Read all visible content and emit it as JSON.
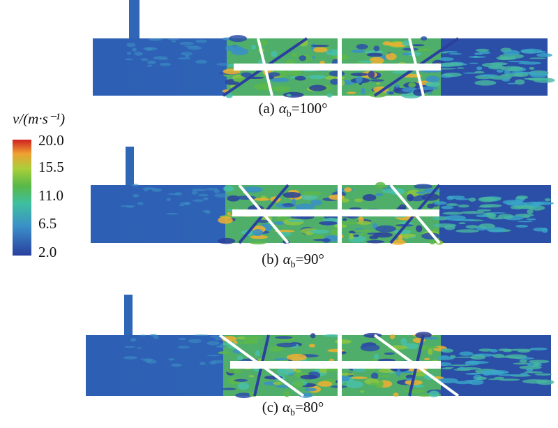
{
  "colorbar": {
    "title": "v/(m·s⁻¹)",
    "tick_labels": [
      "20.0",
      "15.5",
      "11.0",
      "6.5",
      "2.0"
    ]
  },
  "panels": [
    {
      "label": "(a)",
      "symbol": "α",
      "subscript": "b",
      "value": "=100°"
    },
    {
      "label": "(b)",
      "symbol": "α",
      "subscript": "b",
      "value": "=90°"
    },
    {
      "label": "(c)",
      "symbol": "α",
      "subscript": "b",
      "value": "=80°"
    }
  ]
}
